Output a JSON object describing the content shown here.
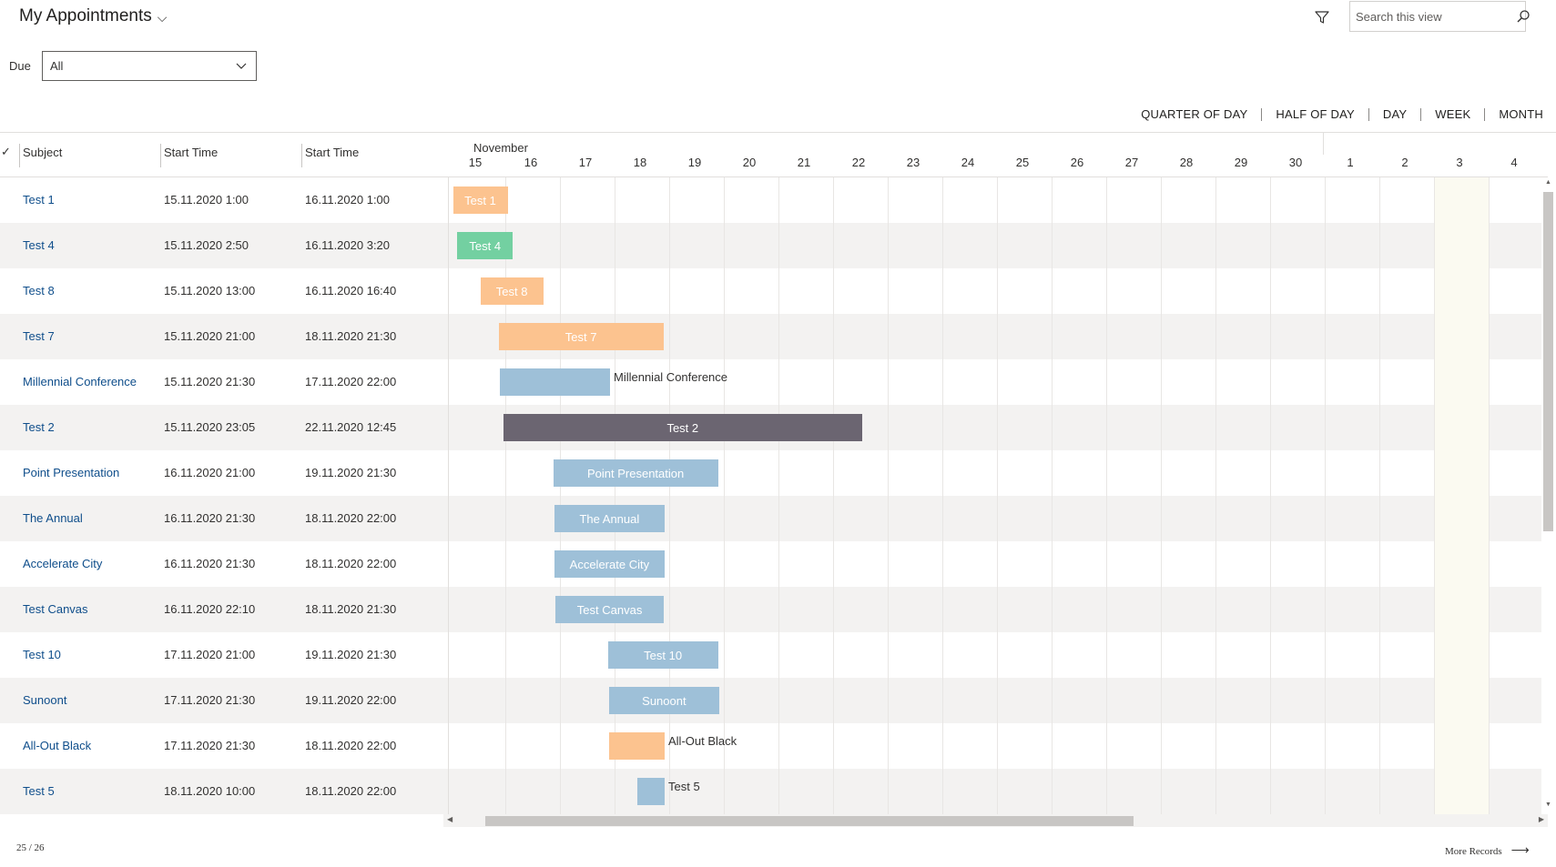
{
  "header": {
    "title": "My Appointments",
    "search_placeholder": "Search this view"
  },
  "filter": {
    "label": "Due",
    "value": "All"
  },
  "timescale": [
    "QUARTER OF DAY",
    "HALF OF DAY",
    "DAY",
    "WEEK",
    "MONTH"
  ],
  "columns": {
    "check": "✓",
    "subject": "Subject",
    "start": "Start Time",
    "end": "Start Time"
  },
  "timeline": {
    "month": "November",
    "days": [
      "15",
      "16",
      "17",
      "18",
      "19",
      "20",
      "21",
      "22",
      "23",
      "24",
      "25",
      "26",
      "27",
      "28",
      "29",
      "30",
      "1",
      "2",
      "3",
      "4"
    ]
  },
  "rows": [
    {
      "subject": "Test 1",
      "start": "15.11.2020 1:00",
      "end": "16.11.2020 1:00",
      "bar_label": "Test 1",
      "color": "orange"
    },
    {
      "subject": "Test 4",
      "start": "15.11.2020 2:50",
      "end": "16.11.2020 3:20",
      "bar_label": "Test 4",
      "color": "green"
    },
    {
      "subject": "Test 8",
      "start": "15.11.2020 13:00",
      "end": "16.11.2020 16:40",
      "bar_label": "Test 8",
      "color": "orange"
    },
    {
      "subject": "Test 7",
      "start": "15.11.2020 21:00",
      "end": "18.11.2020 21:30",
      "bar_label": "Test 7",
      "color": "orange"
    },
    {
      "subject": "Millennial Conference",
      "start": "15.11.2020 21:30",
      "end": "17.11.2020 22:00",
      "bar_label": "Millennial Conference",
      "color": "blue"
    },
    {
      "subject": "Test 2",
      "start": "15.11.2020 23:05",
      "end": "22.11.2020 12:45",
      "bar_label": "Test 2",
      "color": "dark"
    },
    {
      "subject": "Point Presentation",
      "start": "16.11.2020 21:00",
      "end": "19.11.2020 21:30",
      "bar_label": "Point Presentation",
      "color": "blue"
    },
    {
      "subject": "The Annual",
      "start": "16.11.2020 21:30",
      "end": "18.11.2020 22:00",
      "bar_label": "The Annual",
      "color": "blue"
    },
    {
      "subject": "Accelerate City",
      "start": "16.11.2020 21:30",
      "end": "18.11.2020 22:00",
      "bar_label": "Accelerate City",
      "color": "blue"
    },
    {
      "subject": "Test Canvas",
      "start": "16.11.2020 22:10",
      "end": "18.11.2020 21:30",
      "bar_label": "Test Canvas",
      "color": "blue"
    },
    {
      "subject": "Test 10",
      "start": "17.11.2020 21:00",
      "end": "19.11.2020 21:30",
      "bar_label": "Test 10",
      "color": "blue"
    },
    {
      "subject": "Sunoont",
      "start": "17.11.2020 21:30",
      "end": "19.11.2020 22:00",
      "bar_label": "Sunoont",
      "color": "blue"
    },
    {
      "subject": "All-Out Black",
      "start": "17.11.2020 21:30",
      "end": "18.11.2020 22:00",
      "bar_label": "All-Out Black",
      "color": "orange"
    },
    {
      "subject": "Test 5",
      "start": "18.11.2020 10:00",
      "end": "18.11.2020 22:00",
      "bar_label": "Test 5",
      "color": "blue"
    }
  ],
  "footer": {
    "count": "25 / 26",
    "more_records": "More Records"
  },
  "colors": {
    "orange": "#fcc38f",
    "green": "#73d0a1",
    "blue": "#9ec0d8",
    "dark": "#6b6571",
    "link": "#0f4e8b",
    "today_highlight": "#fbfaf1"
  }
}
